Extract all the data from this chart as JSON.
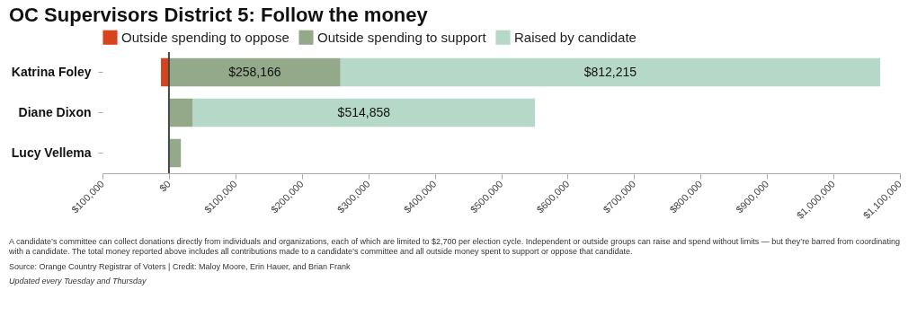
{
  "chart_data": {
    "type": "bar",
    "orientation": "horizontal",
    "stacked": true,
    "title": "OC Supervisors District 5: Follow the money",
    "categories": [
      "Katrina Foley",
      "Diane Dixon",
      "Lucy Vellema"
    ],
    "series": [
      {
        "name": "Outside spending to oppose",
        "color": "#d5441c",
        "values": [
          -12000,
          null,
          null
        ]
      },
      {
        "name": "Outside spending to support",
        "color": "#93a98a",
        "values": [
          258166,
          36000,
          18000
        ],
        "value_labels": [
          "$258,166",
          null,
          null
        ]
      },
      {
        "name": "Raised by candidate",
        "color": "#b5d8c8",
        "values": [
          812215,
          514858,
          null
        ],
        "value_labels": [
          "$812,215",
          "$514,858",
          null
        ]
      }
    ],
    "xlim": [
      -100000,
      1100000
    ],
    "xticks": [
      {
        "value": -100000,
        "label": "$100,000"
      },
      {
        "value": 0,
        "label": "$0"
      },
      {
        "value": 100000,
        "label": "$100,000"
      },
      {
        "value": 200000,
        "label": "$200,000"
      },
      {
        "value": 300000,
        "label": "$300,000"
      },
      {
        "value": 400000,
        "label": "$400,000"
      },
      {
        "value": 500000,
        "label": "$500,000"
      },
      {
        "value": 600000,
        "label": "$600,000"
      },
      {
        "value": 700000,
        "label": "$700,000"
      },
      {
        "value": 800000,
        "label": "$800,000"
      },
      {
        "value": 900000,
        "label": "$900,000"
      },
      {
        "value": 1000000,
        "label": "$1,000,000"
      },
      {
        "value": 1100000,
        "label": "$1,100,000"
      }
    ],
    "ref_lines": [
      {
        "axis": "x",
        "value": 0,
        "color": "#444444"
      }
    ],
    "grid": false,
    "legend": "top left",
    "annotations": [
      "A candidate’s committee can collect donations directly from individuals and organizations, each of which are limited to $2,700 per election cycle. Independent or outside groups can raise and spend without limits — but they’re barred from coordinating with a candidate. The total money reported above includes all contributions made to a candidate’s committee and all outside money spent to support or oppose that candidate.",
      "Source: Orange Country Registrar of Voters | Credit: Maloy Moore, Erin Hauer, and Brian Frank",
      "Updated every Tuesday and Thursday"
    ]
  }
}
